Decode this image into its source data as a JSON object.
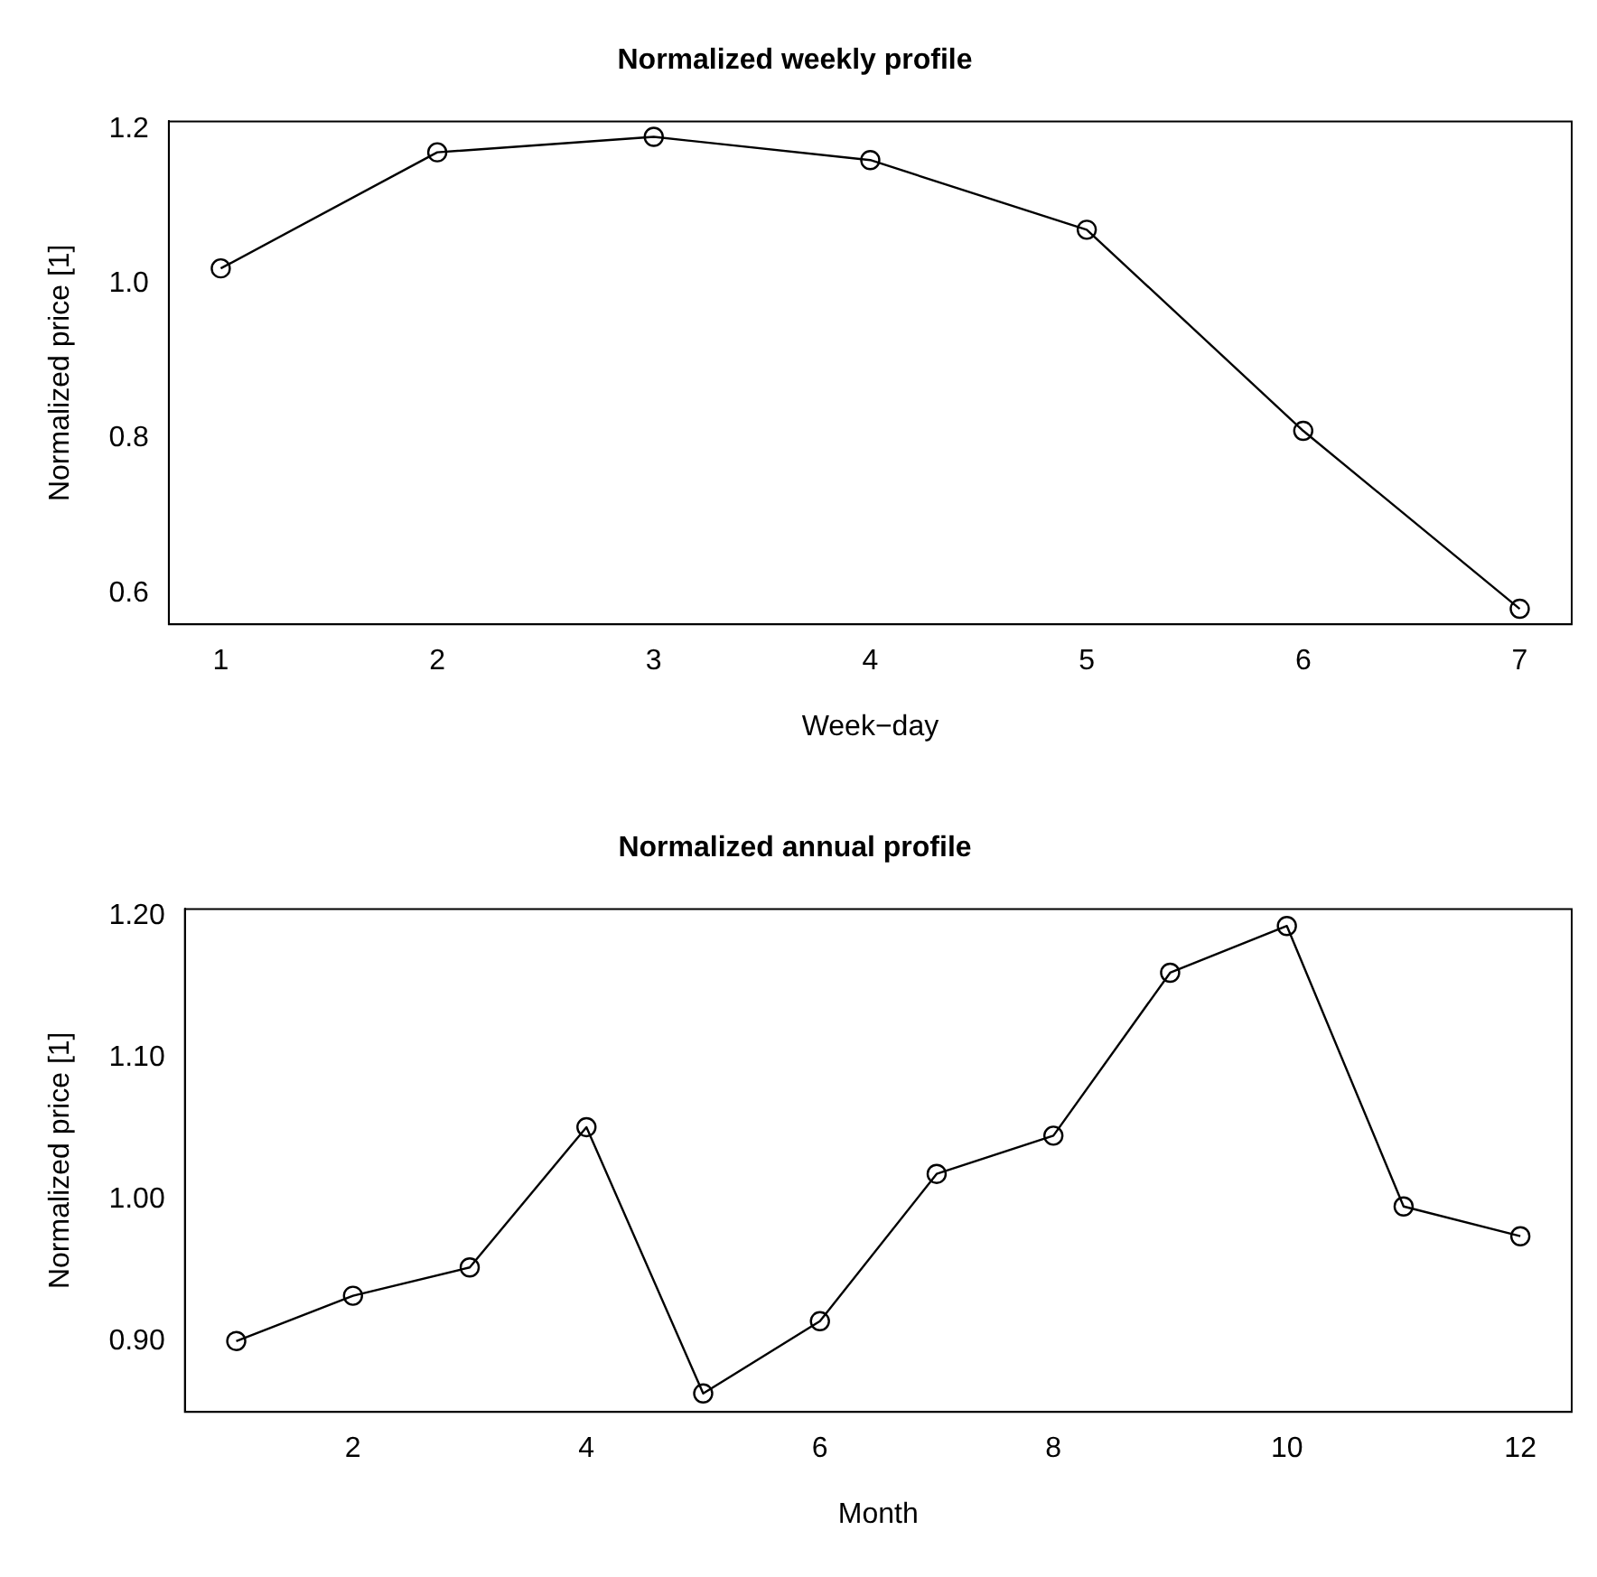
{
  "chart_data": [
    {
      "type": "line",
      "title": "Normalized weekly profile",
      "xlabel": "Week−day",
      "ylabel": "Normalized price [1]",
      "x": [
        1,
        2,
        3,
        4,
        5,
        6,
        7
      ],
      "series": [
        {
          "color": "#000000",
          "values": [
            1.02,
            1.17,
            1.19,
            1.16,
            1.07,
            0.81,
            0.58
          ]
        }
      ],
      "xlim": [
        0.76,
        7.24
      ],
      "xticks": [
        1,
        2,
        3,
        4,
        5,
        6,
        7
      ],
      "ylim": [
        0.56,
        1.21
      ],
      "yticks": [
        0.6,
        0.8,
        {
          "value": 1.0,
          "label": "1.0"
        },
        1.2
      ],
      "marker": "circle",
      "line_style": "solid",
      "grid": false,
      "legend": false
    },
    {
      "type": "line",
      "title": "Normalized annual profile",
      "xlabel": "Month",
      "ylabel": "Normalized price [1]",
      "x": [
        1,
        2,
        3,
        4,
        5,
        6,
        7,
        8,
        9,
        10,
        11,
        12
      ],
      "series": [
        {
          "color": "#000000",
          "values": [
            0.9,
            0.932,
            0.952,
            1.051,
            0.863,
            0.914,
            1.018,
            1.045,
            1.16,
            1.193,
            0.995,
            0.974
          ]
        }
      ],
      "xlim": [
        0.56,
        12.44
      ],
      "xticks": [
        2,
        4,
        6,
        8,
        10,
        12
      ],
      "ylim": [
        0.85,
        1.205
      ],
      "yticks": [
        {
          "value": 0.9,
          "label": "0.90"
        },
        {
          "value": 1.0,
          "label": "1.00"
        },
        {
          "value": 1.1,
          "label": "1.10"
        },
        {
          "value": 1.2,
          "label": "1.20"
        }
      ],
      "marker": "circle",
      "line_style": "solid",
      "grid": false,
      "legend": false
    }
  ]
}
